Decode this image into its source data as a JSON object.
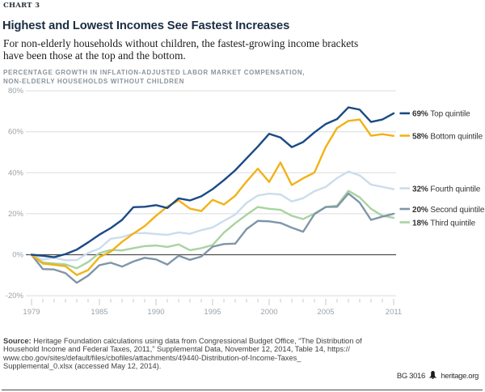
{
  "chart_tag": "CHART 3",
  "title": "Highest and Lowest Incomes See Fastest Increases",
  "subtitle_line1": "For non-elderly households without children, the fastest-growing income brackets",
  "subtitle_line2": "have been those at the top and the bottom.",
  "axis_note_line1": "PERCENTAGE GROWTH IN INFLATION-ADJUSTED LABOR MARKET COMPENSATION,",
  "axis_note_line2": "NON-ELDERLY HOUSEHOLDS WITHOUT CHILDREN",
  "source_label": "Source:",
  "source_text_line1": " Heritage Foundation calculations using data from Congressional Budget Office, “The Distribution of",
  "source_text_line2": "Household Income and Federal Taxes, 2011,” Supplemental Data, November 12, 2014, Table 14, https://",
  "source_text_line3": "www.cbo.gov/sites/default/files/cbofiles/attachments/49440-Distribution-of-Income-Taxes_",
  "source_text_line4": "Supplemental_0.xlsx (accessed May 12, 2014).",
  "footer_id": "BG 3016",
  "footer_site": "heritage.org",
  "chart_data": {
    "type": "line",
    "title": "Highest and Lowest Incomes See Fastest Increases",
    "xlabel": "",
    "ylabel": "Percentage growth in inflation-adjusted labor market compensation",
    "ylim": [
      -20,
      80
    ],
    "ytick_labels": [
      "80%",
      "60%",
      "40%",
      "20%",
      "0%",
      "-20%"
    ],
    "ytick_values": [
      80,
      60,
      40,
      20,
      0,
      -20
    ],
    "xtick_labeled_years": [
      1979,
      1985,
      1990,
      1995,
      2000,
      2005,
      2011
    ],
    "grid": true,
    "legend_position": "right",
    "x": [
      1979,
      1980,
      1981,
      1982,
      1983,
      1984,
      1985,
      1986,
      1987,
      1988,
      1989,
      1990,
      1991,
      1992,
      1993,
      1994,
      1995,
      1996,
      1997,
      1998,
      1999,
      2000,
      2001,
      2002,
      2003,
      2004,
      2005,
      2006,
      2007,
      2008,
      2009,
      2010,
      2011
    ],
    "series": [
      {
        "name": "Top quintile",
        "label": "69% Top quintile",
        "final_label_pct": "69%",
        "color": "#1a4a85",
        "values": [
          0,
          -0.5,
          -1.2,
          0.3,
          2.5,
          6,
          9.8,
          13,
          17,
          23.2,
          23.4,
          24.2,
          22.8,
          27.5,
          26.5,
          28.5,
          32,
          36.4,
          41.2,
          47,
          52.8,
          59,
          57.2,
          52.5,
          55,
          59.7,
          63.8,
          66.2,
          71.9,
          70.8,
          64.8,
          66,
          69
        ]
      },
      {
        "name": "Bottom quintile",
        "label": "58% Bottom quintile",
        "final_label_pct": "58%",
        "color": "#f2b216",
        "values": [
          0,
          -4.3,
          -4.9,
          -5.6,
          -9.9,
          -7.5,
          -1.2,
          1.5,
          6.3,
          10.3,
          14,
          19,
          23.5,
          26.5,
          22.5,
          21.3,
          26.8,
          24.5,
          28.8,
          35.7,
          42,
          35.5,
          45,
          34,
          37.3,
          40.1,
          52.6,
          61.8,
          65.3,
          66,
          58.1,
          58.8,
          58
        ]
      },
      {
        "name": "Fourth quintile",
        "label": "32% Fourth quintile",
        "final_label_pct": "32%",
        "color": "#cbdded",
        "values": [
          0,
          -2.4,
          -1.5,
          -2.7,
          -2.6,
          0.9,
          3,
          7.8,
          8.6,
          10.4,
          10.6,
          10.1,
          9.7,
          10.9,
          10.2,
          12,
          13.3,
          16.5,
          19.6,
          25.3,
          28.9,
          29.8,
          29.4,
          26,
          27.6,
          31,
          33.1,
          37.4,
          40.6,
          38.7,
          34.2,
          33.1,
          32
        ]
      },
      {
        "name": "Second quintile",
        "label": "20% Second quintile",
        "final_label_pct": "20%",
        "color": "#7f96a8",
        "values": [
          0,
          -7,
          -7.2,
          -9,
          -13.7,
          -10.2,
          -5.1,
          -3.9,
          -5.8,
          -3.3,
          -1.5,
          -2.3,
          -4.8,
          -0.5,
          -2.5,
          -0.9,
          3.9,
          5.2,
          5.4,
          12.5,
          16.5,
          16.3,
          15.5,
          13.2,
          11.2,
          19.8,
          23.3,
          23.4,
          29.9,
          25.4,
          17,
          18.6,
          20
        ]
      },
      {
        "name": "Third quintile",
        "label": "18% Third quintile",
        "final_label_pct": "18%",
        "color": "#a9d3a2",
        "values": [
          0,
          -3.8,
          -4.3,
          -4.7,
          -6.6,
          -3.6,
          0.8,
          2.3,
          2.1,
          3.2,
          4.2,
          4.5,
          3.8,
          5,
          2.2,
          3.2,
          4.7,
          10.8,
          15.4,
          19.5,
          23.3,
          22.4,
          21.9,
          19,
          17.4,
          20.1,
          23.3,
          24,
          31.2,
          28,
          22.4,
          19,
          18
        ]
      }
    ],
    "legend_rows": [
      {
        "pct": "69%",
        "name": "Top quintile",
        "color": "#1a4a85",
        "y": 139.9
      },
      {
        "pct": "58%",
        "name": "Bottom quintile",
        "color": "#f2b216",
        "y": 167.5
      },
      {
        "pct": "32%",
        "name": "Fourth quintile",
        "color": "#cbdded",
        "y": 232.5
      },
      {
        "pct": "20%",
        "name": "Second quintile",
        "color": "#7f96a8",
        "y": 258.0
      },
      {
        "pct": "18%",
        "name": "Third quintile",
        "color": "#a9d3a2",
        "y": 274.5
      }
    ]
  },
  "colors": {
    "grid": "#dcdcdc",
    "zero_line": "#4d4d4d",
    "tick": "#c8c8c8",
    "axis_text": "#9aa3aa",
    "legend_text": "#333333"
  }
}
